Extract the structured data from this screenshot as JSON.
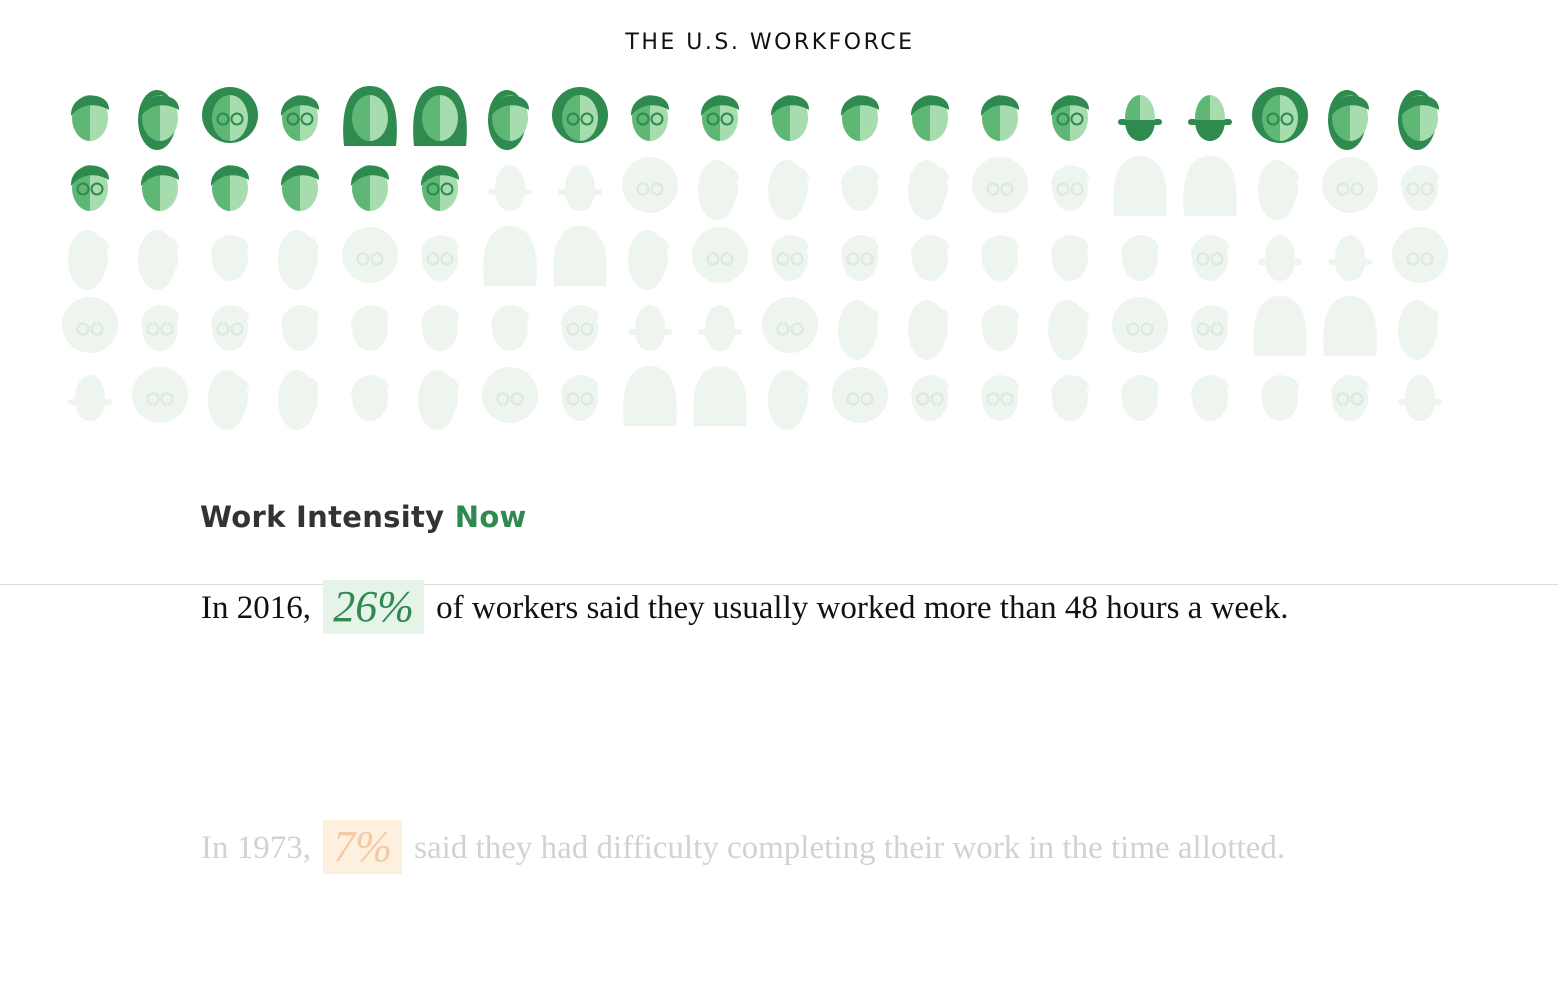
{
  "chart_title": "THE U.S. WORKFORCE",
  "chart_data": {
    "type": "waffle",
    "total_icons": 100,
    "highlighted_icons": 26,
    "colors": {
      "dark": "#2e8a4e",
      "mid": "#5eb775",
      "light": "#a6dcae",
      "faded": "#eef5ef"
    }
  },
  "section": {
    "heading_prefix": "Work Intensity",
    "heading_accent": "Now"
  },
  "paragraphs": [
    {
      "lead": "In 2016,",
      "stat": "26%",
      "text_start": "of",
      "text_rest": "workers said they usually worked more than 48 hours a week."
    },
    {
      "lead": "In 1973,",
      "stat": "7%",
      "text_start": "said",
      "text_rest": "they had difficulty completing their work in the time allotted."
    }
  ]
}
